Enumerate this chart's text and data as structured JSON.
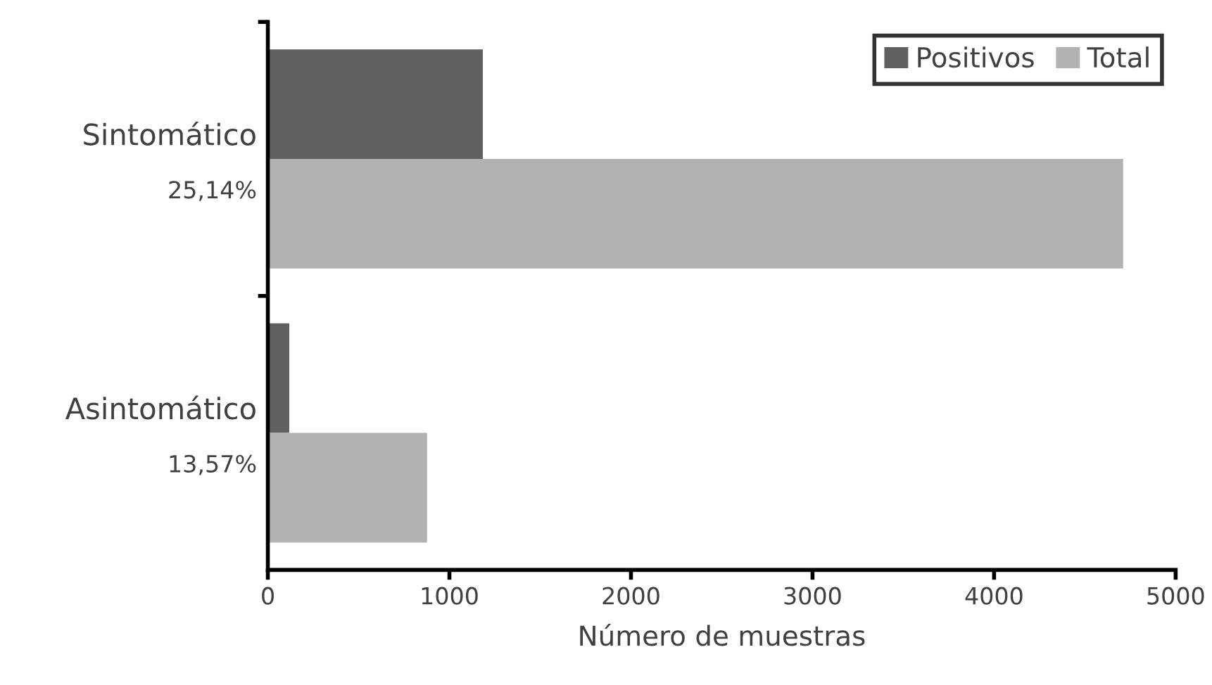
{
  "chart_data": {
    "type": "bar",
    "orientation": "horizontal",
    "xlabel": "Número de muestras",
    "categories": [
      "Sintomático",
      "Asintomático"
    ],
    "series": [
      {
        "name": "Positivos",
        "color": "#606060",
        "values": [
          1184,
          118
        ]
      },
      {
        "name": "Total",
        "color": "#b2b2b2",
        "values": [
          4711,
          877
        ]
      }
    ],
    "xlim": [
      0,
      5000
    ],
    "xticks": [
      0,
      1000,
      2000,
      3000,
      4000,
      5000
    ],
    "annotations": [
      "25,14%",
      "13,57%"
    ],
    "legend": "top right",
    "grid": false
  }
}
